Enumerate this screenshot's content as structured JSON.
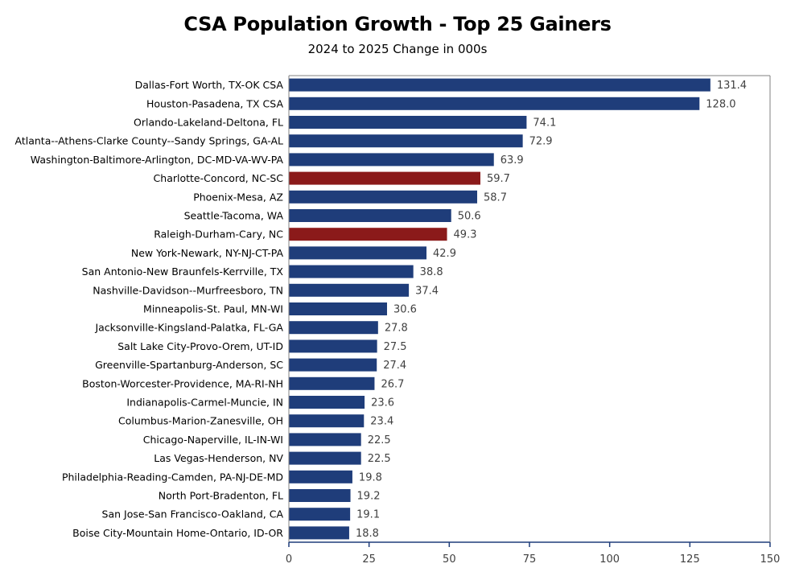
{
  "chart_data": {
    "type": "bar",
    "orientation": "horizontal",
    "title": "CSA Population Growth - Top 25 Gainers",
    "subtitle": "2024 to 2025 Change in 000s",
    "xlabel": "",
    "ylabel": "",
    "xlim": [
      0,
      150
    ],
    "xticks": [
      0,
      25,
      50,
      75,
      100,
      125,
      150
    ],
    "grid": false,
    "legend": "none",
    "colors": {
      "default": "#1f3d7a",
      "highlight": "#8b1a1a"
    },
    "categories": [
      "Dallas-Fort Worth, TX-OK CSA",
      "Houston-Pasadena, TX CSA",
      "Orlando-Lakeland-Deltona, FL",
      "Atlanta--Athens-Clarke County--Sandy Springs, GA-AL",
      "Washington-Baltimore-Arlington, DC-MD-VA-WV-PA",
      "Charlotte-Concord, NC-SC",
      "Phoenix-Mesa, AZ",
      "Seattle-Tacoma, WA",
      "Raleigh-Durham-Cary, NC",
      "New York-Newark, NY-NJ-CT-PA",
      "San Antonio-New Braunfels-Kerrville, TX",
      "Nashville-Davidson--Murfreesboro, TN",
      "Minneapolis-St. Paul, MN-WI",
      "Jacksonville-Kingsland-Palatka, FL-GA",
      "Salt Lake City-Provo-Orem, UT-ID",
      "Greenville-Spartanburg-Anderson, SC",
      "Boston-Worcester-Providence, MA-RI-NH",
      "Indianapolis-Carmel-Muncie, IN",
      "Columbus-Marion-Zanesville, OH",
      "Chicago-Naperville, IL-IN-WI",
      "Las Vegas-Henderson, NV",
      "Philadelphia-Reading-Camden, PA-NJ-DE-MD",
      "North Port-Bradenton, FL",
      "San Jose-San Francisco-Oakland, CA",
      "Boise City-Mountain Home-Ontario, ID-OR"
    ],
    "values": [
      131.4,
      128.0,
      74.1,
      72.9,
      63.9,
      59.7,
      58.7,
      50.6,
      49.3,
      42.9,
      38.8,
      37.4,
      30.6,
      27.8,
      27.5,
      27.4,
      26.7,
      23.6,
      23.4,
      22.5,
      22.5,
      19.8,
      19.2,
      19.1,
      18.8
    ],
    "value_labels": [
      "131.4",
      "128.0",
      "74.1",
      "72.9",
      "63.9",
      "59.7",
      "58.7",
      "50.6",
      "49.3",
      "42.9",
      "38.8",
      "37.4",
      "30.6",
      "27.8",
      "27.5",
      "27.4",
      "26.7",
      "23.6",
      "23.4",
      "22.5",
      "22.5",
      "19.8",
      "19.2",
      "19.1",
      "18.8"
    ],
    "highlighted_categories": [
      "Charlotte-Concord, NC-SC",
      "Raleigh-Durham-Cary, NC"
    ]
  }
}
